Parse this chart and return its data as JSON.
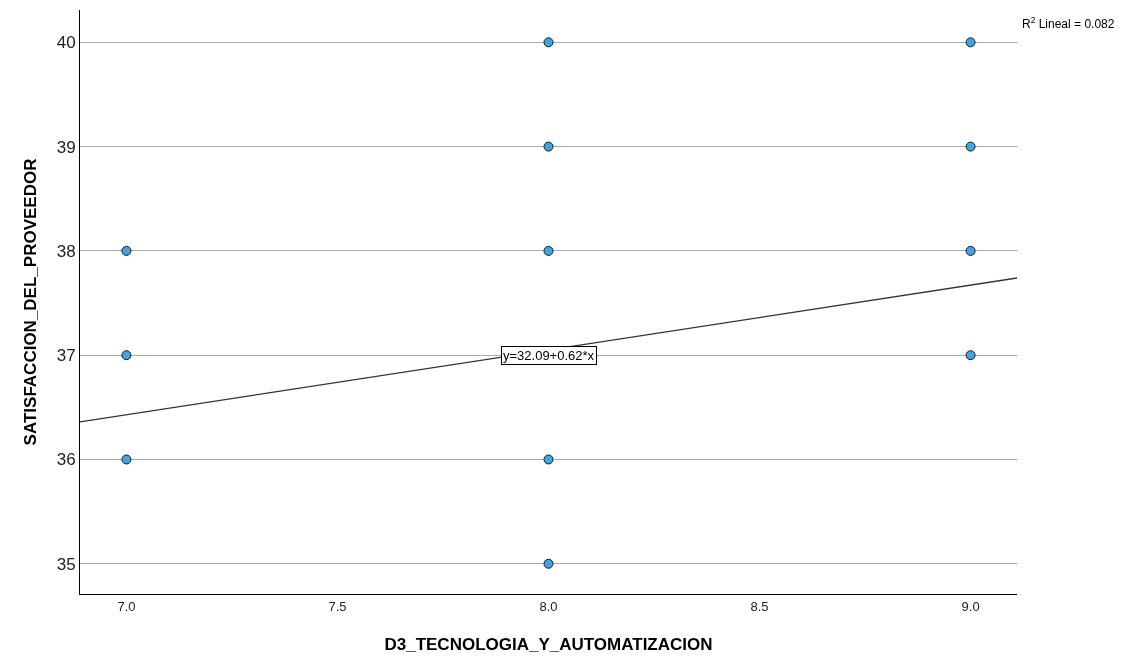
{
  "chart_data": {
    "type": "scatter",
    "xlabel": "D3_TECNOLOGIA_Y_AUTOMATIZACION",
    "ylabel": "SATISFACCION_DEL_PROVEEDOR",
    "series": [
      {
        "color": "#3ea4e6",
        "marker": "circle",
        "x": [
          7,
          7,
          7,
          8,
          8,
          8,
          8,
          8,
          9,
          9,
          9,
          9
        ],
        "values": [
          38,
          37,
          36,
          40,
          39,
          38,
          36,
          35,
          40,
          39,
          38,
          37
        ]
      },
      {
        "type": "line",
        "color": "#333333",
        "marker": "none",
        "x": [
          6.89,
          9.11
        ],
        "values": [
          36.36,
          37.74
        ]
      }
    ],
    "xlim": [
      6.89,
      9.11
    ],
    "ylim": [
      34.71,
      40.31
    ],
    "xticks": [
      {
        "value": 7,
        "label": "7.0"
      },
      {
        "value": 7.5,
        "label": "7.5"
      },
      {
        "value": 8,
        "label": "8.0"
      },
      {
        "value": 8.5,
        "label": "8.5"
      },
      {
        "value": 9,
        "label": "9.0"
      }
    ],
    "yticks": [
      35,
      36,
      37,
      38,
      39,
      40
    ],
    "grid": "y",
    "annotations": [
      {
        "text": "y=32.09+0.62*x",
        "x": 8,
        "y": 37
      },
      "R$^{2}$ Lineal = 0.082"
    ]
  }
}
